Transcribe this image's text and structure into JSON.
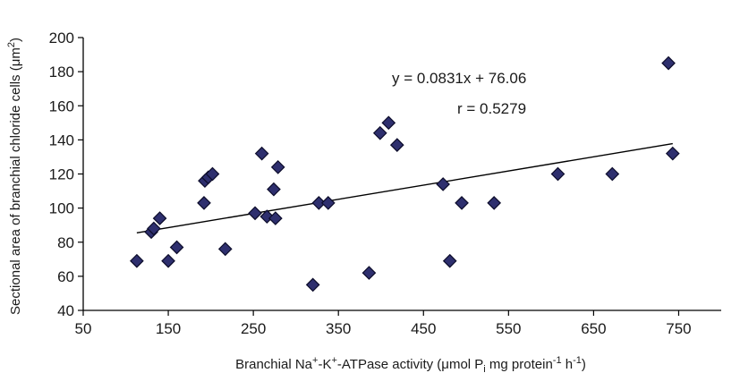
{
  "chart_data": {
    "type": "scatter",
    "xlabel": {
      "main": "Branchial Na",
      "sup1": "+",
      "mid1": "-K",
      "sup2": "+",
      "mid2": "-ATPase activity (μmol P",
      "sub": "i",
      "mid3": " mg protein",
      "sup3": "-1",
      "mid4": " h",
      "sup4": "-1",
      "end": ")"
    },
    "ylabel": {
      "main": "Sectional area of branchial chloride cells (μm",
      "sup": "2",
      "end": ")"
    },
    "xlim": [
      50,
      800
    ],
    "ylim": [
      40,
      200
    ],
    "xticks": [
      50,
      150,
      250,
      350,
      450,
      550,
      650,
      750
    ],
    "yticks": [
      40,
      60,
      80,
      100,
      120,
      140,
      160,
      180,
      200
    ],
    "grid": false,
    "points": [
      {
        "x": 113,
        "y": 69
      },
      {
        "x": 130,
        "y": 86
      },
      {
        "x": 133,
        "y": 88
      },
      {
        "x": 140,
        "y": 94
      },
      {
        "x": 150,
        "y": 69
      },
      {
        "x": 160,
        "y": 77
      },
      {
        "x": 192,
        "y": 103
      },
      {
        "x": 193,
        "y": 116
      },
      {
        "x": 197,
        "y": 118
      },
      {
        "x": 202,
        "y": 120
      },
      {
        "x": 217,
        "y": 76
      },
      {
        "x": 252,
        "y": 97
      },
      {
        "x": 260,
        "y": 132
      },
      {
        "x": 266,
        "y": 95
      },
      {
        "x": 274,
        "y": 111
      },
      {
        "x": 276,
        "y": 94
      },
      {
        "x": 279,
        "y": 124
      },
      {
        "x": 320,
        "y": 55
      },
      {
        "x": 327,
        "y": 103
      },
      {
        "x": 338,
        "y": 103
      },
      {
        "x": 386,
        "y": 62
      },
      {
        "x": 399,
        "y": 144
      },
      {
        "x": 409,
        "y": 150
      },
      {
        "x": 419,
        "y": 137
      },
      {
        "x": 473,
        "y": 114
      },
      {
        "x": 481,
        "y": 69
      },
      {
        "x": 495,
        "y": 103
      },
      {
        "x": 533,
        "y": 103
      },
      {
        "x": 608,
        "y": 120
      },
      {
        "x": 672,
        "y": 120
      },
      {
        "x": 738,
        "y": 185
      },
      {
        "x": 743,
        "y": 132
      }
    ],
    "trendline": {
      "x_start": 113,
      "x_end": 743,
      "slope": 0.0831,
      "intercept": 76.06
    },
    "annotations": {
      "equation": "y = 0.0831x + 76.06",
      "r_value": "r = 0.5279"
    },
    "colors": {
      "marker_fill": "#2e2f6e",
      "marker_stroke": "#0c0c2a",
      "axis": "#000000",
      "trendline": "#000000"
    }
  }
}
